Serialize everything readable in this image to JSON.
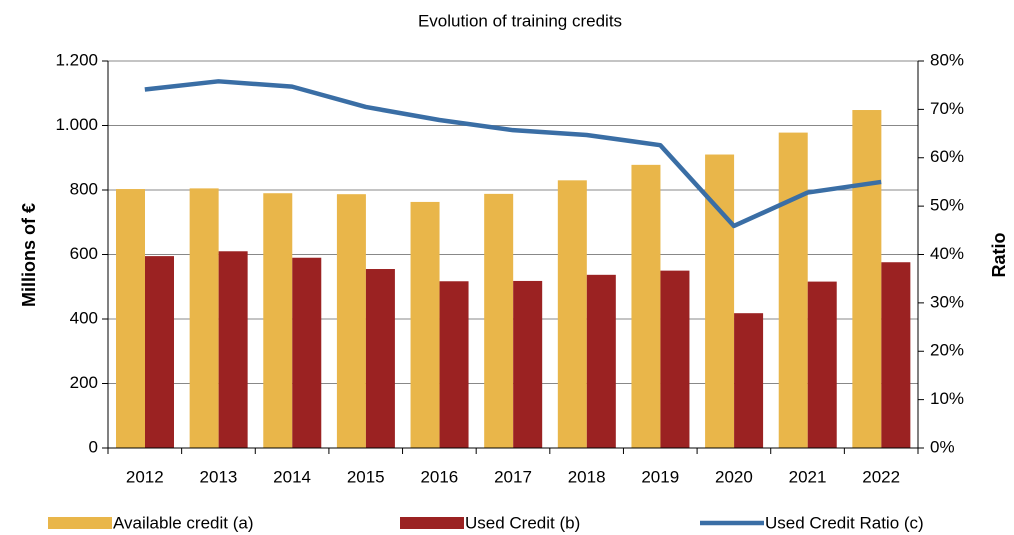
{
  "chart_data": {
    "type": "bar_line",
    "title": "Evolution of training credits",
    "ylabel": "Millions of €",
    "y2label": "Ratio",
    "categories": [
      "2012",
      "2013",
      "2014",
      "2015",
      "2016",
      "2017",
      "2018",
      "2019",
      "2020",
      "2021",
      "2022"
    ],
    "series": [
      {
        "name": "Available credit (a)",
        "type": "bar",
        "color": "#e9b64a",
        "values": [
          803,
          805,
          790,
          787,
          763,
          788,
          830,
          878,
          910,
          978,
          1048
        ]
      },
      {
        "name": "Used Credit (b)",
        "type": "bar",
        "color": "#9b2222",
        "values": [
          595,
          610,
          590,
          555,
          517,
          518,
          537,
          550,
          418,
          516,
          576
        ]
      },
      {
        "name": "Used Credit Ratio (c)",
        "type": "line",
        "axis": "y2",
        "color": "#3a6ea5",
        "values": [
          74.1,
          75.8,
          74.7,
          70.5,
          67.8,
          65.7,
          64.7,
          62.6,
          45.9,
          52.8,
          55.0
        ]
      }
    ],
    "ylim": [
      0,
      1200
    ],
    "yticks": [
      0,
      200,
      400,
      600,
      800,
      {
        "value": 1000,
        "label": "1.000"
      },
      {
        "value": 1200,
        "label": "1.200"
      }
    ],
    "y2lim": [
      0,
      80
    ],
    "y2ticks": [
      {
        "value": 0,
        "label": "0%"
      },
      {
        "value": 10,
        "label": "10%"
      },
      {
        "value": 20,
        "label": "20%"
      },
      {
        "value": 30,
        "label": "30%"
      },
      {
        "value": 40,
        "label": "40%"
      },
      {
        "value": 50,
        "label": "50%"
      },
      {
        "value": 60,
        "label": "60%"
      },
      {
        "value": 70,
        "label": "70%"
      },
      {
        "value": 80,
        "label": "80%"
      }
    ],
    "grid": true,
    "legend": "bottom"
  }
}
